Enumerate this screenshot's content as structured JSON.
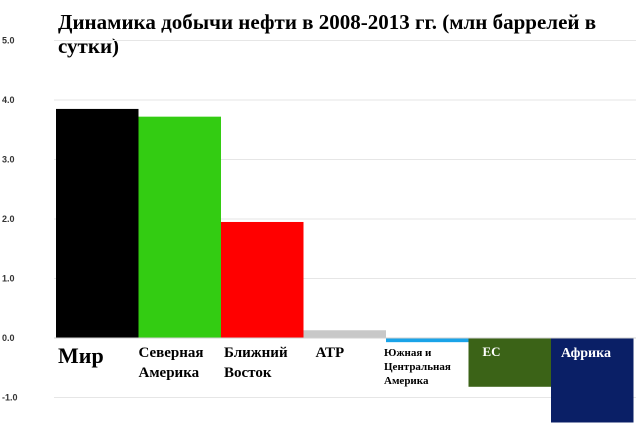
{
  "chart_data": {
    "type": "bar",
    "title": "Динамика добычи нефти в 2008-2013 гг. (млн баррелей в сутки)",
    "xlabel": "",
    "ylabel": "",
    "ylim": [
      -1.5,
      5.0
    ],
    "yticks": [
      "5.0",
      "4.0",
      "3.0",
      "2.0",
      "1.0",
      "0.0",
      "-1.0"
    ],
    "ytick_values": [
      5,
      4,
      3,
      2,
      1,
      0,
      -1
    ],
    "grid": true,
    "legend": "none",
    "categories": [
      "Мир",
      "Северная Америка",
      "Ближний Восток",
      "АТР",
      "Южная и Центральная Америка",
      "ЕС",
      "Африка"
    ],
    "category_lines": [
      [
        "Мир"
      ],
      [
        "Северная",
        "Америка"
      ],
      [
        "Ближний",
        "Восток"
      ],
      [
        "АТР"
      ],
      [
        "Южная и",
        "Центральная",
        "Америка"
      ],
      [
        "ЕС"
      ],
      [
        "Африка"
      ]
    ],
    "values": [
      3.85,
      3.72,
      1.95,
      0.13,
      -0.07,
      -0.82,
      -1.42
    ],
    "colors": [
      "#000000",
      "#33cc12",
      "#ff0000",
      "#c8c8c8",
      "#1aa3e8",
      "#3b6317",
      "#0a1f66"
    ],
    "label_colors": [
      "#000000",
      "#000000",
      "#000000",
      "#000000",
      "#000000",
      "#ffffff",
      "#ffffff"
    ]
  }
}
